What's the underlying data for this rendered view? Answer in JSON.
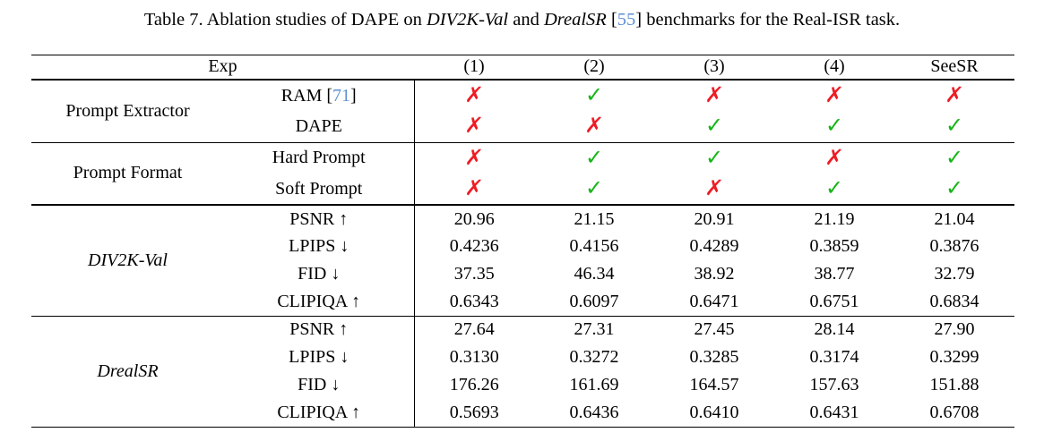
{
  "colors": {
    "mark_red": "#ee1c24",
    "mark_green": "#17b517",
    "cite_blue": "#5b8fd4",
    "rule_black": "#000000"
  },
  "icons": {
    "cross": "✗",
    "check": "✓"
  },
  "caption": {
    "segments": [
      {
        "text": "Table 7. Ablation studies of DAPE on ",
        "style": "normal"
      },
      {
        "text": "DIV2K-Val",
        "style": "italic"
      },
      {
        "text": " and ",
        "style": "normal"
      },
      {
        "text": "DrealSR",
        "style": "italic"
      },
      {
        "text": " [",
        "style": "normal"
      },
      {
        "text": "55",
        "style": "cite"
      },
      {
        "text": "] benchmarks for the Real-ISR task.",
        "style": "normal"
      }
    ]
  },
  "table": {
    "header": {
      "exp": "Exp",
      "cols": [
        "(1)",
        "(2)",
        "(3)",
        "(4)",
        "SeeSR"
      ]
    },
    "sections": [
      {
        "group": "Prompt Extractor",
        "group_style": "normal",
        "type": "marks",
        "divider_after": "thin",
        "rows": [
          {
            "label": [
              {
                "t": "RAM ["
              },
              {
                "t": "71",
                "s": "cite"
              },
              {
                "t": "]"
              }
            ],
            "cells": [
              "cross",
              "check",
              "cross",
              "cross",
              "cross"
            ]
          },
          {
            "label": [
              {
                "t": "DAPE"
              }
            ],
            "cells": [
              "cross",
              "cross",
              "check",
              "check",
              "check"
            ]
          }
        ]
      },
      {
        "group": "Prompt Format",
        "group_style": "normal",
        "type": "marks",
        "divider_after": "thick",
        "rows": [
          {
            "label": [
              {
                "t": "Hard Prompt"
              }
            ],
            "cells": [
              "cross",
              "check",
              "check",
              "cross",
              "check"
            ]
          },
          {
            "label": [
              {
                "t": "Soft Prompt"
              }
            ],
            "cells": [
              "cross",
              "check",
              "cross",
              "check",
              "check"
            ]
          }
        ]
      },
      {
        "group": "DIV2K-Val",
        "group_style": "italic",
        "type": "metrics",
        "divider_after": "medium",
        "rows": [
          {
            "label": [
              {
                "t": "PSNR ↑"
              }
            ],
            "cells": [
              "20.96",
              "21.15",
              "20.91",
              "21.19",
              "21.04"
            ]
          },
          {
            "label": [
              {
                "t": "LPIPS ↓"
              }
            ],
            "cells": [
              "0.4236",
              "0.4156",
              "0.4289",
              "0.3859",
              "0.3876"
            ]
          },
          {
            "label": [
              {
                "t": "FID ↓"
              }
            ],
            "cells": [
              "37.35",
              "46.34",
              "38.92",
              "38.77",
              "32.79"
            ]
          },
          {
            "label": [
              {
                "t": "CLIPIQA ↑"
              }
            ],
            "cells": [
              "0.6343",
              "0.6097",
              "0.6471",
              "0.6751",
              "0.6834"
            ]
          }
        ]
      },
      {
        "group": "DrealSR",
        "group_style": "italic",
        "type": "metrics",
        "divider_after": null,
        "rows": [
          {
            "label": [
              {
                "t": "PSNR ↑"
              }
            ],
            "cells": [
              "27.64",
              "27.31",
              "27.45",
              "28.14",
              "27.90"
            ]
          },
          {
            "label": [
              {
                "t": "LPIPS ↓"
              }
            ],
            "cells": [
              "0.3130",
              "0.3272",
              "0.3285",
              "0.3174",
              "0.3299"
            ]
          },
          {
            "label": [
              {
                "t": "FID ↓"
              }
            ],
            "cells": [
              "176.26",
              "161.69",
              "164.57",
              "157.63",
              "151.88"
            ]
          },
          {
            "label": [
              {
                "t": "CLIPIQA ↑"
              }
            ],
            "cells": [
              "0.5693",
              "0.6436",
              "0.6410",
              "0.6431",
              "0.6708"
            ]
          }
        ]
      }
    ]
  }
}
